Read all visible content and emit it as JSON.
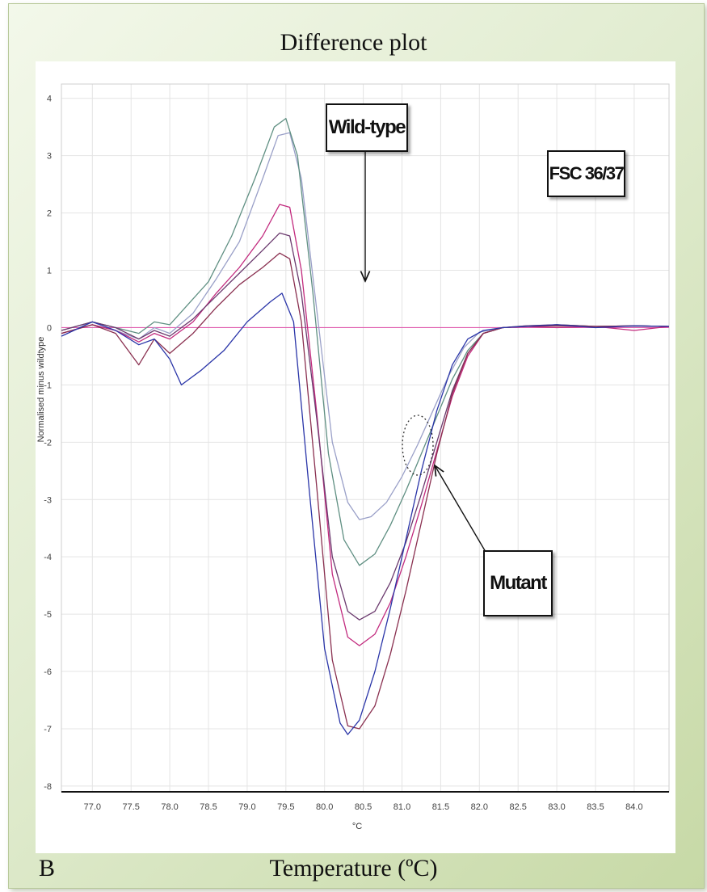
{
  "figure": {
    "top_title": "Difference plot",
    "bottom_label": "Temperature (ºC)",
    "panel_letter": "B",
    "annotations": {
      "wild_type": "Wild-type",
      "fsc": "FSC 36/37",
      "mutant": "Mutant"
    },
    "colors": {
      "frame_light": "#f3f8ea",
      "frame_dark": "#c7d9a6",
      "baseline": "#e05fb0"
    }
  },
  "chart_data": {
    "type": "line",
    "title": "Difference plot",
    "xlabel": "°C",
    "ylabel": "Normalised minus wildtype",
    "xlim": [
      76.6,
      84.45
    ],
    "ylim": [
      -8.1,
      4.25
    ],
    "x_ticks": [
      "77.0",
      "77.5",
      "78.0",
      "78.5",
      "79.0",
      "79.5",
      "80.0",
      "80.5",
      "81.0",
      "81.5",
      "82.0",
      "82.5",
      "83.0",
      "83.5",
      "84.0"
    ],
    "y_ticks": [
      "4",
      "3",
      "2",
      "1",
      "0",
      "-1",
      "-2",
      "-3",
      "-4",
      "-5",
      "-6",
      "-7",
      "-8"
    ],
    "grid": true,
    "series": [
      {
        "color": "#9aa0c8",
        "x": [
          76.6,
          77.0,
          77.3,
          77.6,
          77.8,
          78.0,
          78.3,
          78.6,
          78.9,
          79.2,
          79.4,
          79.55,
          79.7,
          79.9,
          80.1,
          80.3,
          80.45,
          80.6,
          80.8,
          81.0,
          81.2,
          81.4,
          81.6,
          81.8,
          82.0,
          82.3,
          82.6,
          83.0,
          83.5,
          84.0,
          84.45
        ],
        "y": [
          -0.1,
          0.05,
          -0.05,
          -0.2,
          0.0,
          -0.1,
          0.25,
          0.85,
          1.5,
          2.6,
          3.35,
          3.4,
          2.6,
          0.3,
          -2.0,
          -3.05,
          -3.35,
          -3.3,
          -3.05,
          -2.6,
          -2.05,
          -1.45,
          -0.85,
          -0.35,
          -0.08,
          0.0,
          0.03,
          0.05,
          0.02,
          0.03,
          0.02
        ]
      },
      {
        "color": "#5f8f82",
        "x": [
          76.6,
          77.0,
          77.3,
          77.6,
          77.8,
          78.0,
          78.2,
          78.5,
          78.8,
          79.1,
          79.35,
          79.5,
          79.65,
          79.85,
          80.05,
          80.25,
          80.45,
          80.65,
          80.85,
          81.05,
          81.25,
          81.45,
          81.65,
          81.85,
          82.05,
          82.3,
          82.6,
          83.0,
          83.5,
          84.0,
          84.45
        ],
        "y": [
          -0.05,
          0.1,
          0.0,
          -0.1,
          0.1,
          0.05,
          0.35,
          0.8,
          1.6,
          2.6,
          3.5,
          3.65,
          3.0,
          0.6,
          -2.2,
          -3.7,
          -4.15,
          -3.95,
          -3.45,
          -2.85,
          -2.2,
          -1.55,
          -0.9,
          -0.4,
          -0.1,
          0.0,
          0.02,
          0.05,
          0.02,
          0.03,
          0.02
        ]
      },
      {
        "color": "#c22a7e",
        "x": [
          76.6,
          77.0,
          77.3,
          77.6,
          77.8,
          78.0,
          78.3,
          78.6,
          78.9,
          79.2,
          79.42,
          79.55,
          79.7,
          79.9,
          80.1,
          80.3,
          80.45,
          80.65,
          80.85,
          81.05,
          81.25,
          81.45,
          81.65,
          81.85,
          82.05,
          82.3,
          82.6,
          83.0,
          83.5,
          84.0,
          84.45
        ],
        "y": [
          -0.1,
          0.05,
          -0.05,
          -0.25,
          -0.1,
          -0.2,
          0.1,
          0.6,
          1.05,
          1.6,
          2.15,
          2.1,
          1.0,
          -1.5,
          -4.3,
          -5.4,
          -5.55,
          -5.35,
          -4.8,
          -4.0,
          -3.1,
          -2.15,
          -1.2,
          -0.5,
          -0.1,
          0.0,
          0.02,
          0.0,
          0.02,
          -0.05,
          0.02
        ]
      },
      {
        "color": "#6b3a6e",
        "x": [
          76.6,
          77.0,
          77.3,
          77.6,
          77.8,
          78.0,
          78.3,
          78.6,
          78.9,
          79.2,
          79.42,
          79.55,
          79.7,
          79.9,
          80.1,
          80.3,
          80.45,
          80.65,
          80.85,
          81.05,
          81.25,
          81.45,
          81.65,
          81.85,
          82.05,
          82.3,
          82.6,
          83.0,
          83.5,
          84.0,
          84.45
        ],
        "y": [
          -0.05,
          0.1,
          0.0,
          -0.2,
          -0.05,
          -0.15,
          0.15,
          0.55,
          0.95,
          1.35,
          1.65,
          1.6,
          0.6,
          -1.6,
          -4.0,
          -4.95,
          -5.1,
          -4.95,
          -4.45,
          -3.75,
          -2.9,
          -2.0,
          -1.1,
          -0.45,
          -0.1,
          0.0,
          0.03,
          0.05,
          0.02,
          0.03,
          0.02
        ]
      },
      {
        "color": "#8a3050",
        "x": [
          76.6,
          77.0,
          77.3,
          77.6,
          77.8,
          78.0,
          78.3,
          78.6,
          78.9,
          79.2,
          79.42,
          79.55,
          79.7,
          79.9,
          80.1,
          80.3,
          80.45,
          80.65,
          80.85,
          81.05,
          81.25,
          81.45,
          81.65,
          81.85,
          82.05,
          82.3,
          82.6,
          83.0,
          83.5,
          84.0,
          84.45
        ],
        "y": [
          -0.1,
          0.05,
          -0.1,
          -0.65,
          -0.2,
          -0.45,
          -0.1,
          0.35,
          0.75,
          1.05,
          1.3,
          1.2,
          0.1,
          -2.8,
          -5.8,
          -6.95,
          -7.0,
          -6.6,
          -5.7,
          -4.6,
          -3.4,
          -2.2,
          -1.15,
          -0.45,
          -0.1,
          0.0,
          0.02,
          0.03,
          0.02,
          0.03,
          0.02
        ]
      },
      {
        "color": "#2a35a8",
        "x": [
          76.6,
          77.0,
          77.3,
          77.6,
          77.8,
          78.0,
          78.15,
          78.4,
          78.7,
          79.0,
          79.3,
          79.45,
          79.6,
          79.8,
          80.0,
          80.2,
          80.3,
          80.45,
          80.65,
          80.85,
          81.05,
          81.25,
          81.45,
          81.65,
          81.85,
          82.05,
          82.3,
          82.6,
          83.0,
          83.5,
          84.0,
          84.45
        ],
        "y": [
          -0.15,
          0.1,
          -0.05,
          -0.3,
          -0.2,
          -0.55,
          -1.0,
          -0.75,
          -0.4,
          0.1,
          0.45,
          0.6,
          0.1,
          -2.8,
          -5.6,
          -6.9,
          -7.1,
          -6.85,
          -6.0,
          -4.9,
          -3.7,
          -2.5,
          -1.45,
          -0.65,
          -0.2,
          -0.05,
          0.0,
          0.02,
          0.05,
          0.0,
          0.03,
          0.02
        ]
      }
    ]
  }
}
